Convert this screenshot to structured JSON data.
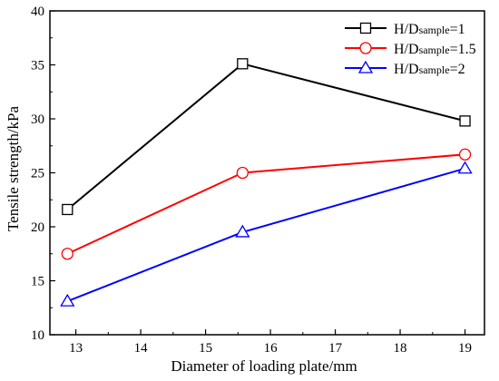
{
  "chart_data": {
    "type": "line",
    "title": "",
    "xlabel": "Diameter of loading plate/mm",
    "ylabel": "Tensile strength/kPa",
    "xlim": [
      12.6,
      19.3
    ],
    "ylim": [
      10,
      40
    ],
    "x_ticks": [
      13,
      14,
      15,
      16,
      17,
      18,
      19
    ],
    "y_ticks": [
      10,
      15,
      20,
      25,
      30,
      35,
      40
    ],
    "x": [
      12.87,
      15.57,
      19.0
    ],
    "series": [
      {
        "name_main": "H/D",
        "name_sub": "sample",
        "name_tail": "=1",
        "values": [
          21.6,
          35.1,
          29.8
        ],
        "color": "#000000",
        "marker": "square"
      },
      {
        "name_main": "H/D",
        "name_sub": "sample",
        "name_tail": "=1.5",
        "values": [
          17.5,
          25.0,
          26.7
        ],
        "color": "#ff0000",
        "marker": "circle"
      },
      {
        "name_main": "H/D",
        "name_sub": "sample",
        "name_tail": "=2",
        "values": [
          13.1,
          19.5,
          25.4
        ],
        "color": "#0000ff",
        "marker": "triangle"
      }
    ],
    "grid": false,
    "legend_position": "top-right"
  }
}
